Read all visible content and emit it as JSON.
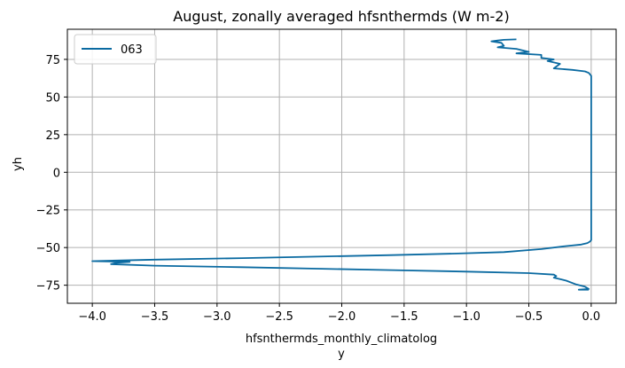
{
  "chart_data": {
    "type": "line",
    "title": "August, zonally averaged hfsnthermds (W m-2)",
    "xlabel_lines": [
      "hfsnthermds_monthly_climatolog",
      "y"
    ],
    "ylabel": "yh",
    "xlim": [
      -4.2,
      0.2
    ],
    "ylim": [
      -87,
      95
    ],
    "xticks": [
      -4.0,
      -3.5,
      -3.0,
      -2.5,
      -2.0,
      -1.5,
      -1.0,
      -0.5,
      0.0
    ],
    "xtick_labels": [
      "−4.0",
      "−3.5",
      "−3.0",
      "−2.5",
      "−2.0",
      "−1.5",
      "−1.0",
      "−0.5",
      "0.0"
    ],
    "yticks": [
      -75,
      -50,
      -25,
      0,
      25,
      50,
      75
    ],
    "ytick_labels": [
      "−75",
      "−50",
      "−25",
      "0",
      "25",
      "50",
      "75"
    ],
    "grid": true,
    "legend_position": "top-left",
    "series": [
      {
        "name": "063",
        "color": "#0a6aa1",
        "points": [
          [
            -0.02,
            -78
          ],
          [
            -0.05,
            -78
          ],
          [
            -0.1,
            -78
          ],
          [
            -0.02,
            -77.5
          ],
          [
            -0.05,
            -76
          ],
          [
            -0.12,
            -74.5
          ],
          [
            -0.2,
            -72
          ],
          [
            -0.25,
            -71
          ],
          [
            -0.3,
            -70
          ],
          [
            -0.28,
            -69
          ],
          [
            -0.3,
            -68
          ],
          [
            -0.5,
            -67
          ],
          [
            -1.0,
            -66
          ],
          [
            -1.6,
            -65
          ],
          [
            -2.2,
            -64
          ],
          [
            -2.8,
            -63
          ],
          [
            -3.5,
            -62
          ],
          [
            -3.85,
            -61
          ],
          [
            -3.8,
            -60
          ],
          [
            -3.7,
            -59.5
          ],
          [
            -4.0,
            -59
          ],
          [
            -3.5,
            -58
          ],
          [
            -2.8,
            -57
          ],
          [
            -2.2,
            -56
          ],
          [
            -1.6,
            -55
          ],
          [
            -1.1,
            -54
          ],
          [
            -0.7,
            -53
          ],
          [
            -0.4,
            -51
          ],
          [
            -0.2,
            -49
          ],
          [
            -0.08,
            -48
          ],
          [
            -0.03,
            -47
          ],
          [
            -0.01,
            -46
          ],
          [
            0.0,
            -45
          ],
          [
            0.0,
            -30
          ],
          [
            0.0,
            0
          ],
          [
            0.0,
            30
          ],
          [
            0.0,
            55
          ],
          [
            0.0,
            64
          ],
          [
            -0.02,
            66
          ],
          [
            -0.05,
            67
          ],
          [
            -0.15,
            68
          ],
          [
            -0.3,
            69
          ],
          [
            -0.25,
            72
          ],
          [
            -0.35,
            74
          ],
          [
            -0.3,
            75
          ],
          [
            -0.4,
            76
          ],
          [
            -0.4,
            78
          ],
          [
            -0.6,
            79
          ],
          [
            -0.5,
            80
          ],
          [
            -0.6,
            82
          ],
          [
            -0.75,
            83
          ],
          [
            -0.7,
            84
          ],
          [
            -0.72,
            86
          ],
          [
            -0.8,
            87
          ],
          [
            -0.75,
            87.5
          ],
          [
            -0.7,
            88
          ],
          [
            -0.6,
            88.3
          ]
        ]
      }
    ]
  }
}
